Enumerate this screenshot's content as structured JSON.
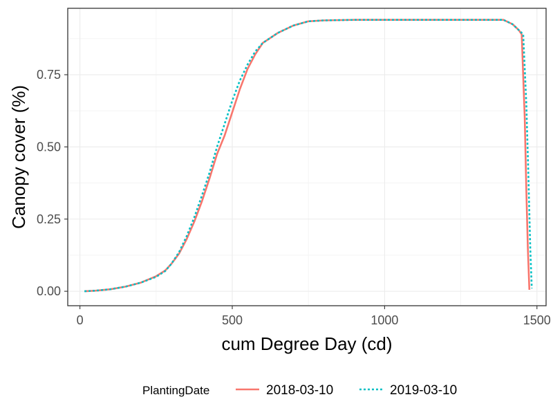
{
  "chart_data": {
    "type": "line",
    "xlabel": "cum Degree Day (cd)",
    "ylabel": "Canopy cover (%)",
    "xlim": [
      -40,
      1530
    ],
    "ylim": [
      -0.05,
      0.98
    ],
    "x_ticks": [
      0,
      500,
      1000,
      1500
    ],
    "x_tick_labels": [
      "0",
      "500",
      "1000",
      "1500"
    ],
    "y_ticks": [
      0.0,
      0.25,
      0.5,
      0.75
    ],
    "y_tick_labels": [
      "0.00",
      "0.25",
      "0.50",
      "0.75"
    ],
    "grid": true,
    "legend": {
      "title": "PlantingDate",
      "position": "bottom"
    },
    "series": [
      {
        "name": "2018-03-10",
        "color": "#F8766D",
        "dash": "solid",
        "points": [
          [
            15,
            0.0
          ],
          [
            50,
            0.002
          ],
          [
            100,
            0.007
          ],
          [
            150,
            0.016
          ],
          [
            200,
            0.03
          ],
          [
            250,
            0.052
          ],
          [
            280,
            0.072
          ],
          [
            300,
            0.095
          ],
          [
            325,
            0.13
          ],
          [
            350,
            0.18
          ],
          [
            375,
            0.24
          ],
          [
            400,
            0.31
          ],
          [
            425,
            0.39
          ],
          [
            450,
            0.475
          ],
          [
            475,
            0.54
          ],
          [
            500,
            0.62
          ],
          [
            525,
            0.7
          ],
          [
            550,
            0.77
          ],
          [
            575,
            0.82
          ],
          [
            600,
            0.86
          ],
          [
            650,
            0.895
          ],
          [
            700,
            0.92
          ],
          [
            750,
            0.935
          ],
          [
            800,
            0.938
          ],
          [
            900,
            0.94
          ],
          [
            1000,
            0.94
          ],
          [
            1200,
            0.94
          ],
          [
            1390,
            0.94
          ],
          [
            1420,
            0.925
          ],
          [
            1440,
            0.905
          ],
          [
            1450,
            0.89
          ],
          [
            1460,
            0.6
          ],
          [
            1465,
            0.35
          ],
          [
            1470,
            0.15
          ],
          [
            1475,
            0.005
          ]
        ]
      },
      {
        "name": "2019-03-10",
        "color": "#00BFC4",
        "dash": "dotted",
        "points": [
          [
            15,
            0.0
          ],
          [
            50,
            0.002
          ],
          [
            100,
            0.007
          ],
          [
            150,
            0.016
          ],
          [
            200,
            0.03
          ],
          [
            250,
            0.05
          ],
          [
            280,
            0.07
          ],
          [
            300,
            0.095
          ],
          [
            325,
            0.135
          ],
          [
            350,
            0.19
          ],
          [
            375,
            0.255
          ],
          [
            400,
            0.33
          ],
          [
            425,
            0.41
          ],
          [
            450,
            0.5
          ],
          [
            475,
            0.58
          ],
          [
            500,
            0.66
          ],
          [
            525,
            0.73
          ],
          [
            550,
            0.785
          ],
          [
            575,
            0.83
          ],
          [
            600,
            0.86
          ],
          [
            650,
            0.895
          ],
          [
            700,
            0.92
          ],
          [
            750,
            0.935
          ],
          [
            800,
            0.938
          ],
          [
            900,
            0.94
          ],
          [
            1000,
            0.94
          ],
          [
            1200,
            0.94
          ],
          [
            1390,
            0.94
          ],
          [
            1420,
            0.925
          ],
          [
            1440,
            0.905
          ],
          [
            1455,
            0.89
          ],
          [
            1465,
            0.65
          ],
          [
            1472,
            0.4
          ],
          [
            1478,
            0.15
          ],
          [
            1483,
            0.01
          ]
        ]
      }
    ]
  }
}
